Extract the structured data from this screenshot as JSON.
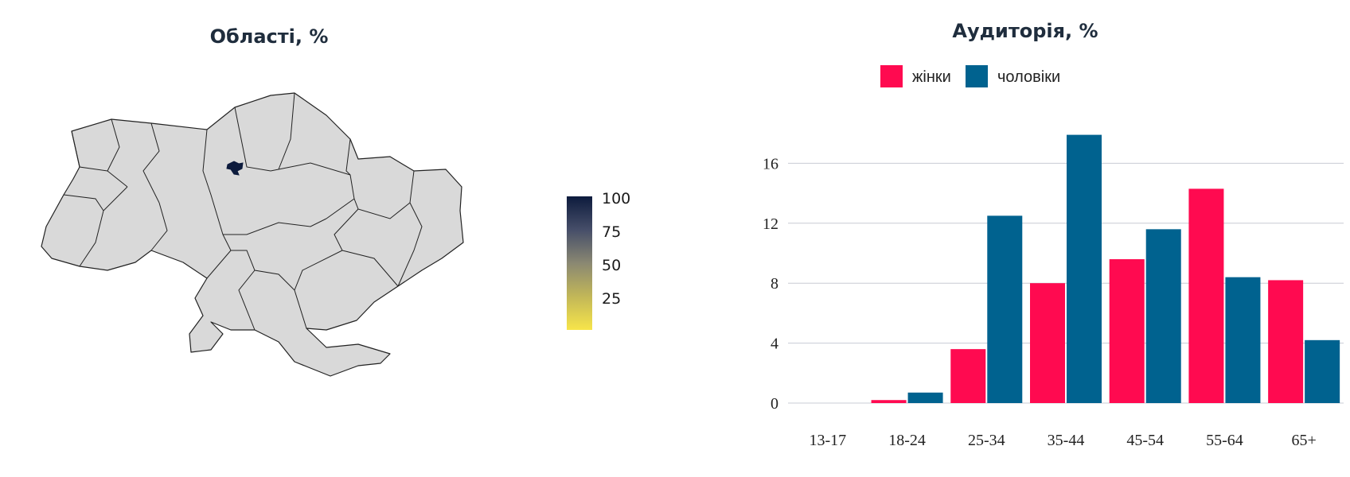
{
  "chart_data": [
    {
      "type": "choropleth",
      "title": "Області, %",
      "colorbar": {
        "ticks": [
          "100",
          "75",
          "50",
          "25"
        ],
        "colors": [
          "#0d1b3d",
          "#f7e54a"
        ]
      },
      "highlighted_region": {
        "name": "Kyiv city",
        "value": 100,
        "color": "#0d1b3d"
      },
      "other_regions_color": "#d9d9d9"
    },
    {
      "type": "bar",
      "title": "Аудиторія, %",
      "categories": [
        "13-17",
        "18-24",
        "25-34",
        "35-44",
        "45-54",
        "55-64",
        "65+"
      ],
      "series": [
        {
          "name": "жінки",
          "color": "#ff0a50",
          "values": [
            0,
            0.2,
            3.6,
            8.0,
            9.6,
            14.3,
            8.2
          ]
        },
        {
          "name": "чоловіки",
          "color": "#00628f",
          "values": [
            0,
            0.7,
            12.5,
            17.9,
            11.6,
            8.4,
            4.2
          ]
        }
      ],
      "yticks": [
        "0",
        "4",
        "8",
        "12",
        "16"
      ],
      "ylim": [
        0,
        18
      ],
      "grid": true,
      "legend": "top-center"
    }
  ]
}
